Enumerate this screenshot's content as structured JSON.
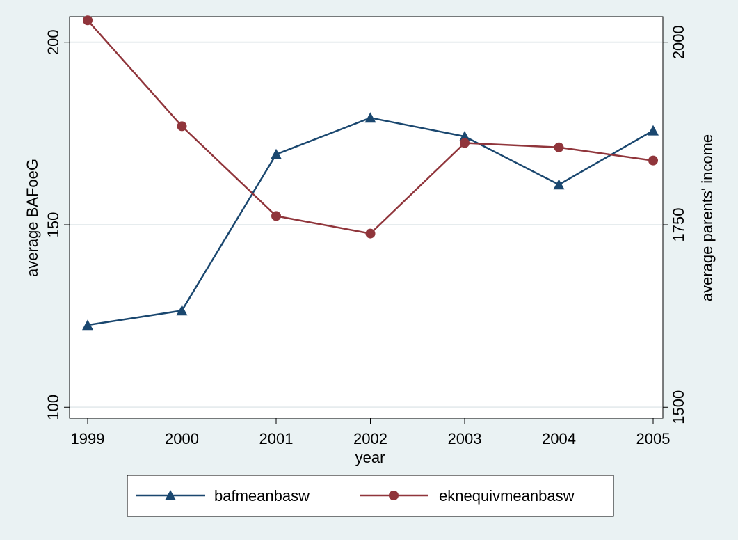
{
  "chart_data": {
    "type": "line",
    "title": "",
    "xlabel": "year",
    "ylabel_left": "average BAFoeG",
    "ylabel_right": "average parents' income",
    "x": [
      1999,
      2000,
      2001,
      2002,
      2003,
      2004,
      2005
    ],
    "xlim": [
      1999,
      2005
    ],
    "ylim_left": [
      97,
      207
    ],
    "ylim_right": [
      1485,
      2035
    ],
    "yticks_left": [
      100,
      150,
      200
    ],
    "yticks_right": [
      1500,
      1750,
      2000
    ],
    "grid": true,
    "legend_position": "bottom",
    "series": [
      {
        "name": "bafmeanbasw",
        "axis": "left",
        "marker": "triangle",
        "color": "#1a476f",
        "values": [
          122.5,
          126.5,
          169.3,
          179.3,
          174.2,
          161.0,
          175.8
        ]
      },
      {
        "name": "eknequivmeanbasw",
        "axis": "right",
        "marker": "circle",
        "color": "#90353b",
        "values": [
          2030,
          1885,
          1762,
          1738,
          1862,
          1856,
          1838
        ]
      }
    ]
  }
}
